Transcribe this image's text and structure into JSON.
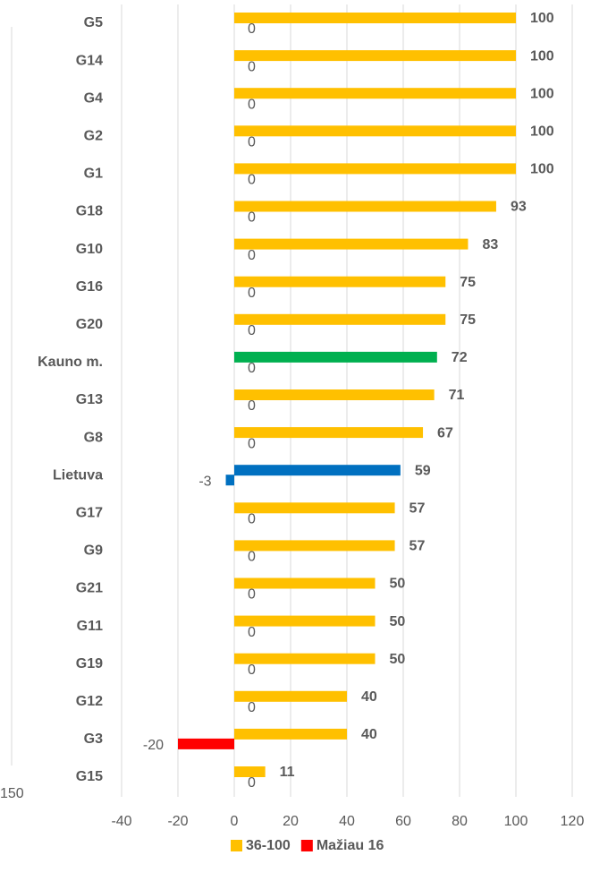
{
  "chart_data": {
    "type": "hbar",
    "categories": [
      "G5",
      "G14",
      "G4",
      "G2",
      "G1",
      "G18",
      "G10",
      "G16",
      "G20",
      "Kauno m.",
      "G13",
      "G8",
      "Lietuva",
      "G17",
      "G9",
      "G21",
      "G11",
      "G19",
      "G12",
      "G3",
      "G15"
    ],
    "series": [
      {
        "name": "36-100",
        "color": "#ffc000",
        "point_colors": {
          "Kauno m.": "#00b050",
          "Lietuva": "#0070c0"
        },
        "values": [
          100,
          100,
          100,
          100,
          100,
          93,
          83,
          75,
          75,
          72,
          71,
          67,
          59,
          57,
          57,
          50,
          50,
          50,
          40,
          40,
          11
        ]
      },
      {
        "name": "Mažiau 16",
        "color": "#ff0000",
        "point_colors": {
          "Lietuva": "#0070c0"
        },
        "values": [
          0,
          0,
          0,
          0,
          0,
          0,
          0,
          0,
          0,
          0,
          0,
          0,
          -3,
          0,
          0,
          0,
          0,
          0,
          0,
          -20,
          0
        ]
      }
    ],
    "xlim": [
      -40,
      120
    ],
    "xticks": [
      -40,
      -20,
      0,
      20,
      40,
      60,
      80,
      100,
      120
    ],
    "grid": true,
    "legend": "bottom"
  },
  "edge_fragment": {
    "label": "150"
  }
}
